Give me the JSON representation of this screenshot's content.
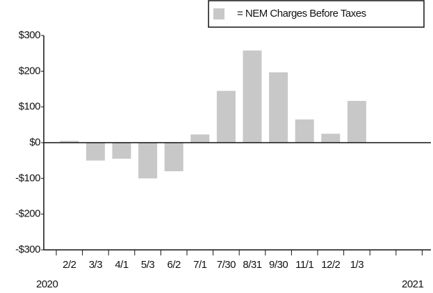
{
  "chart_data": {
    "type": "bar",
    "legend_label": "= NEM Charges Before Taxes",
    "categories": [
      "2/2",
      "3/3",
      "4/1",
      "5/3",
      "6/2",
      "7/1",
      "7/30",
      "8/31",
      "9/30",
      "11/1",
      "12/2",
      "1/3",
      null,
      null
    ],
    "values": [
      5,
      -50,
      -45,
      -100,
      -80,
      23,
      145,
      258,
      197,
      65,
      25,
      117,
      null,
      null
    ],
    "color": "#c8c8c8",
    "ylim": [
      -300,
      300
    ],
    "yticks": [
      {
        "value": -300,
        "label": "-$300"
      },
      {
        "value": -200,
        "label": "-$200"
      },
      {
        "value": -100,
        "label": "-$100"
      },
      {
        "value": 0,
        "label": "$0"
      },
      {
        "value": 100,
        "label": "$100"
      },
      {
        "value": 200,
        "label": "$200"
      },
      {
        "value": 300,
        "label": "$300"
      }
    ],
    "annotations": [
      "2020",
      "2021"
    ],
    "legend_position": "upper right",
    "grid": false
  }
}
